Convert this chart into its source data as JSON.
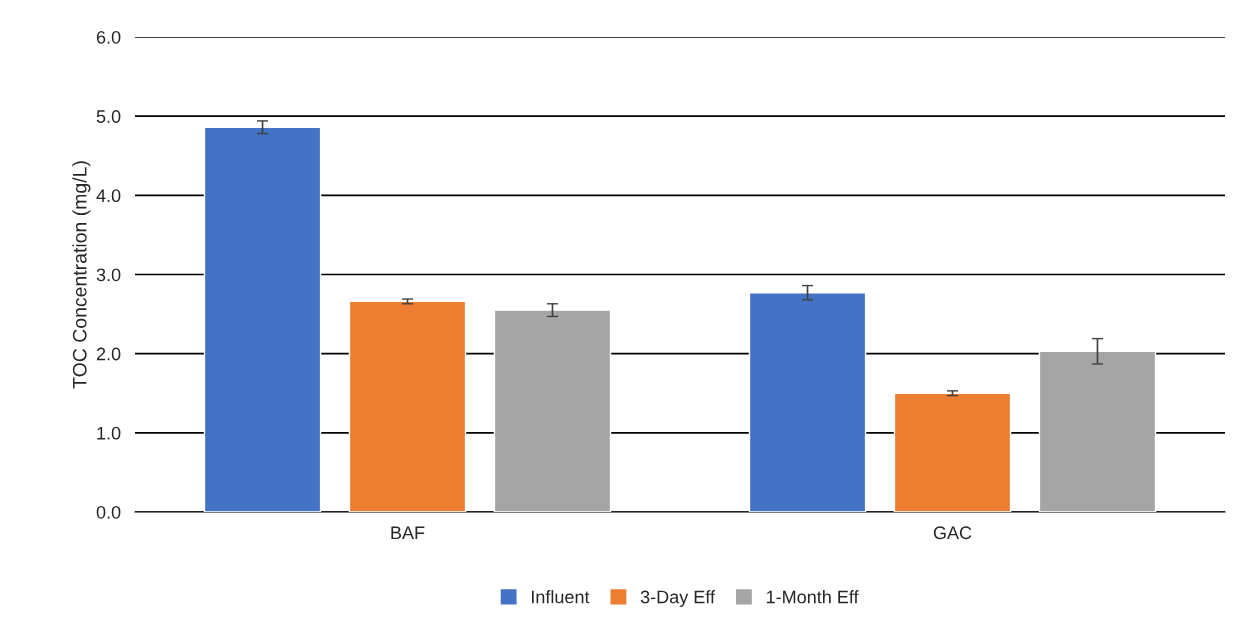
{
  "chart_data": {
    "type": "bar",
    "ylabel": "TOC Concentration (mg/L)",
    "categories": [
      "BAF",
      "GAC"
    ],
    "series": [
      {
        "name": "Influent",
        "color": "#4472c4",
        "values": [
          4.86,
          2.77
        ],
        "errors": [
          0.08,
          0.09
        ]
      },
      {
        "name": "3-Day Eff",
        "color": "#ed7d31",
        "values": [
          2.66,
          1.5
        ],
        "errors": [
          0.03,
          0.03
        ]
      },
      {
        "name": "1-Month Eff",
        "color": "#a5a5a5",
        "values": [
          2.55,
          2.03
        ],
        "errors": [
          0.08,
          0.16
        ]
      }
    ],
    "ylim": [
      0,
      6
    ],
    "yticks": [
      {
        "value": 0,
        "label": "0.0"
      },
      {
        "value": 1,
        "label": "1.0"
      },
      {
        "value": 2,
        "label": "2.0"
      },
      {
        "value": 3,
        "label": "3.0"
      },
      {
        "value": 4,
        "label": "4.0"
      },
      {
        "value": 5,
        "label": "5.0"
      },
      {
        "value": 6,
        "label": "6.0"
      }
    ],
    "grid": "y",
    "legend": "bottom"
  }
}
